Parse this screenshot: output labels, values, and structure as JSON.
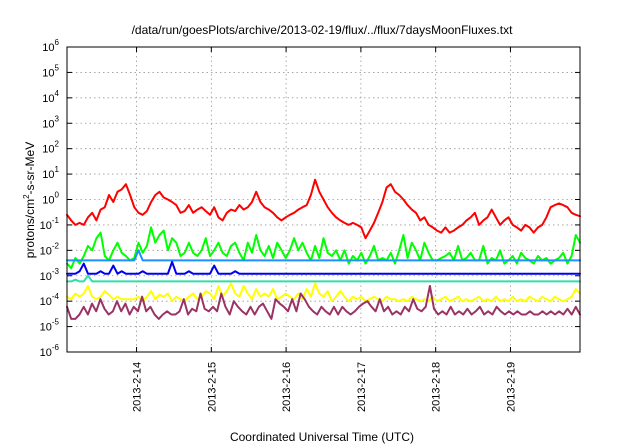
{
  "chart_data": {
    "type": "line",
    "title": "/data/run/goesPlots/archive/2013-02-19/flux/../flux/7daysMoonFluxes.txt",
    "xlabel": "Coordinated Universal Time (UTC)",
    "ylabel": "protons/cm2-s-sr-MeV",
    "ylabel_parts": {
      "pre": "protons/cm",
      "sup": "2",
      "post": "-s-sr-MeV"
    },
    "yscale": "log",
    "ylim": [
      1e-06,
      1000000.0
    ],
    "xlim": [
      -0.93,
      5.93
    ],
    "grid": true,
    "y_ticks": [
      {
        "value": -6,
        "base": "10",
        "exp": "-6"
      },
      {
        "value": -5,
        "base": "10",
        "exp": "-5"
      },
      {
        "value": -4,
        "base": "10",
        "exp": "-4"
      },
      {
        "value": -3,
        "base": "10",
        "exp": "-3"
      },
      {
        "value": -2,
        "base": "10",
        "exp": "-2"
      },
      {
        "value": -1,
        "base": "10",
        "exp": "-1"
      },
      {
        "value": 0,
        "base": "10",
        "exp": "0"
      },
      {
        "value": 1,
        "base": "10",
        "exp": "1"
      },
      {
        "value": 2,
        "base": "10",
        "exp": "2"
      },
      {
        "value": 3,
        "base": "10",
        "exp": "3"
      },
      {
        "value": 4,
        "base": "10",
        "exp": "4"
      },
      {
        "value": 5,
        "base": "10",
        "exp": "5"
      },
      {
        "value": 6,
        "base": "10",
        "exp": "6"
      }
    ],
    "x_ticks": [
      {
        "value": 0,
        "label": "2013-2-14"
      },
      {
        "value": 1,
        "label": "2013-2-15"
      },
      {
        "value": 2,
        "label": "2013-2-16"
      },
      {
        "value": 3,
        "label": "2013-2-17"
      },
      {
        "value": 4,
        "label": "2013-2-18"
      },
      {
        "value": 5,
        "label": "2013-2-19"
      }
    ],
    "series": [
      {
        "color": "#ff0000",
        "values": [
          0.25,
          0.15,
          0.1,
          0.12,
          0.1,
          0.2,
          0.3,
          0.15,
          0.4,
          0.5,
          1.5,
          0.8,
          2.0,
          2.5,
          4.0,
          1.5,
          0.5,
          0.3,
          0.25,
          0.35,
          0.8,
          1.5,
          2.0,
          1.2,
          1.0,
          0.8,
          0.6,
          0.3,
          0.35,
          0.6,
          0.3,
          0.4,
          0.5,
          0.35,
          0.25,
          0.5,
          0.2,
          0.15,
          0.3,
          0.4,
          0.35,
          0.6,
          0.4,
          0.5,
          0.8,
          2.0,
          0.8,
          0.5,
          0.4,
          0.3,
          0.2,
          0.15,
          0.2,
          0.25,
          0.3,
          0.4,
          0.5,
          0.6,
          1.5,
          6.0,
          2.0,
          1.0,
          0.5,
          0.3,
          0.2,
          0.15,
          0.12,
          0.1,
          0.12,
          0.1,
          0.08,
          0.03,
          0.06,
          0.12,
          0.3,
          0.8,
          3.0,
          4.0,
          2.0,
          1.5,
          1.0,
          0.6,
          0.4,
          0.3,
          0.15,
          0.2,
          0.1,
          0.08,
          0.06,
          0.05,
          0.08,
          0.05,
          0.06,
          0.08,
          0.1,
          0.15,
          0.2,
          0.3,
          0.1,
          0.15,
          0.2,
          0.4,
          0.2,
          0.1,
          0.15,
          0.2,
          0.1,
          0.08,
          0.06,
          0.1,
          0.08,
          0.05,
          0.08,
          0.1,
          0.2,
          0.5,
          0.6,
          0.7,
          0.6,
          0.5,
          0.3,
          0.25,
          0.22
        ]
      },
      {
        "color": "#00ff00",
        "values": [
          0.003,
          0.002,
          0.005,
          0.003,
          0.006,
          0.015,
          0.01,
          0.03,
          0.05,
          0.006,
          0.004,
          0.01,
          0.02,
          0.008,
          0.006,
          0.004,
          0.005,
          0.02,
          0.008,
          0.015,
          0.08,
          0.02,
          0.04,
          0.06,
          0.01,
          0.03,
          0.02,
          0.006,
          0.008,
          0.02,
          0.008,
          0.006,
          0.01,
          0.03,
          0.006,
          0.01,
          0.02,
          0.008,
          0.006,
          0.015,
          0.02,
          0.008,
          0.004,
          0.02,
          0.008,
          0.04,
          0.01,
          0.006,
          0.015,
          0.005,
          0.02,
          0.01,
          0.005,
          0.01,
          0.03,
          0.01,
          0.02,
          0.008,
          0.004,
          0.015,
          0.005,
          0.03,
          0.008,
          0.006,
          0.01,
          0.004,
          0.01,
          0.003,
          0.006,
          0.004,
          0.008,
          0.003,
          0.006,
          0.015,
          0.004,
          0.005,
          0.004,
          0.008,
          0.003,
          0.01,
          0.04,
          0.005,
          0.02,
          0.01,
          0.004,
          0.02,
          0.008,
          0.004,
          0.004,
          0.005,
          0.006,
          0.008,
          0.004,
          0.015,
          0.004,
          0.005,
          0.008,
          0.004,
          0.004,
          0.015,
          0.003,
          0.005,
          0.004,
          0.01,
          0.003,
          0.004,
          0.006,
          0.003,
          0.008,
          0.005,
          0.004,
          0.003,
          0.006,
          0.004,
          0.005,
          0.003,
          0.004,
          0.005,
          0.008,
          0.003,
          0.006,
          0.04,
          0.02
        ]
      },
      {
        "color": "#1e90ff",
        "values": [
          0.004,
          0.004,
          0.004,
          0.004,
          0.004,
          0.004,
          0.004,
          0.004,
          0.004,
          0.004,
          0.004,
          0.004,
          0.004,
          0.004,
          0.004,
          0.004,
          0.004,
          0.01,
          0.004,
          0.004,
          0.004,
          0.004,
          0.004,
          0.004,
          0.004,
          0.004,
          0.004,
          0.004,
          0.004,
          0.004,
          0.004,
          0.004,
          0.004,
          0.004,
          0.004,
          0.004,
          0.004,
          0.004,
          0.004,
          0.004,
          0.004,
          0.004,
          0.004,
          0.004,
          0.004,
          0.004,
          0.004,
          0.004,
          0.004,
          0.004,
          0.004,
          0.004,
          0.004,
          0.004,
          0.004,
          0.004,
          0.004,
          0.004,
          0.004,
          0.004,
          0.004,
          0.004,
          0.004,
          0.004,
          0.004,
          0.004,
          0.004,
          0.004,
          0.004,
          0.004,
          0.004,
          0.004,
          0.004,
          0.004,
          0.004,
          0.004,
          0.004,
          0.004,
          0.004,
          0.004,
          0.004,
          0.004,
          0.004,
          0.004,
          0.004,
          0.004,
          0.004,
          0.004,
          0.004,
          0.004,
          0.004,
          0.004,
          0.004,
          0.004,
          0.004,
          0.004,
          0.004,
          0.004,
          0.004,
          0.004,
          0.004,
          0.004,
          0.004,
          0.004,
          0.004,
          0.004,
          0.004,
          0.004,
          0.004,
          0.004,
          0.004,
          0.004,
          0.004,
          0.004,
          0.004,
          0.004,
          0.004,
          0.004,
          0.004,
          0.004,
          0.004,
          0.004,
          0.004
        ]
      },
      {
        "color": "#0000ee",
        "values": [
          0.0012,
          0.0012,
          0.0012,
          0.0015,
          0.003,
          0.0012,
          0.0012,
          0.0012,
          0.0015,
          0.0012,
          0.0012,
          0.0025,
          0.0012,
          0.0015,
          0.0012,
          0.0012,
          0.0012,
          0.0012,
          0.0015,
          0.0012,
          0.0012,
          0.0012,
          0.0012,
          0.0012,
          0.0012,
          0.0035,
          0.0012,
          0.0012,
          0.0012,
          0.0015,
          0.0012,
          0.0012,
          0.0012,
          0.0012,
          0.0012,
          0.0025,
          0.0012,
          0.0012,
          0.0012,
          0.0012,
          0.0015,
          0.0012,
          0.0012,
          0.0012,
          0.0012,
          0.0012,
          0.0012,
          0.0012,
          0.0012,
          0.0012,
          0.0012,
          0.0012,
          0.0012,
          0.0012,
          0.0012,
          0.0012,
          0.0012,
          0.0012,
          0.0012,
          0.0012,
          0.0012,
          0.0012,
          0.0012,
          0.0012,
          0.0012,
          0.0012,
          0.0012,
          0.0012,
          0.0012,
          0.0012,
          0.0012,
          0.0012,
          0.0012,
          0.0012,
          0.0012,
          0.0012,
          0.0012,
          0.0012,
          0.0012,
          0.0012,
          0.0012,
          0.0012,
          0.0012,
          0.0012,
          0.0012,
          0.0012,
          0.0012,
          0.0012,
          0.0012,
          0.0012,
          0.0012,
          0.0012,
          0.0012,
          0.0012,
          0.0012,
          0.0012,
          0.0012,
          0.0012,
          0.0012,
          0.0012,
          0.0012,
          0.0012,
          0.0012,
          0.0012,
          0.0012,
          0.0012,
          0.0012,
          0.0012,
          0.0012,
          0.0012,
          0.0012,
          0.0012,
          0.0012,
          0.0012,
          0.0012,
          0.0012,
          0.0012,
          0.0012,
          0.0012,
          0.0012,
          0.0012,
          0.0012,
          0.0012
        ]
      },
      {
        "color": "#33ddaa",
        "values": [
          0.0006,
          0.0006,
          0.0007,
          0.0006,
          0.0006,
          0.001,
          0.0006,
          0.0006,
          0.0006,
          0.0006,
          0.0006,
          0.0006,
          0.0006,
          0.0006,
          0.0006,
          0.0006,
          0.0006,
          0.0006,
          0.0006,
          0.0006,
          0.0006,
          0.0006,
          0.0006,
          0.0006,
          0.0006,
          0.0006,
          0.0006,
          0.0006,
          0.0006,
          0.0006,
          0.0006,
          0.0006,
          0.0006,
          0.0006,
          0.0006,
          0.0006,
          0.0006,
          0.0006,
          0.0006,
          0.0006,
          0.0006,
          0.0006,
          0.0006,
          0.0006,
          0.0006,
          0.0006,
          0.0006,
          0.0006,
          0.0006,
          0.0006,
          0.0006,
          0.0006,
          0.0006,
          0.0006,
          0.0006,
          0.0006,
          0.0006,
          0.0006,
          0.0006,
          0.0006,
          0.0006,
          0.0006,
          0.0006,
          0.0006,
          0.0006,
          0.0006,
          0.0006,
          0.0006,
          0.0006,
          0.0006,
          0.0006,
          0.0006,
          0.0006,
          0.0006,
          0.0006,
          0.0006,
          0.0006,
          0.0006,
          0.0006,
          0.0006,
          0.0006,
          0.0006,
          0.0006,
          0.0006,
          0.0006,
          0.0006,
          0.0006,
          0.0006,
          0.0006,
          0.0006,
          0.0006,
          0.0006,
          0.0006,
          0.0006,
          0.0006,
          0.0006,
          0.0006,
          0.0006,
          0.0006,
          0.0006,
          0.0006,
          0.0006,
          0.0006,
          0.0006,
          0.0006,
          0.0006,
          0.0006,
          0.0006,
          0.0006,
          0.0006,
          0.0006,
          0.0006,
          0.0006,
          0.0006,
          0.0006,
          0.0006,
          0.0006,
          0.0006,
          0.0006,
          0.0006,
          0.0006,
          0.0006,
          0.0006
        ]
      },
      {
        "color": "#ffff00",
        "values": [
          0.00015,
          0.00012,
          0.0002,
          0.00015,
          0.0002,
          0.0004,
          0.00015,
          0.00012,
          0.00015,
          0.00025,
          0.00018,
          0.00012,
          0.00015,
          0.00012,
          0.00012,
          0.00012,
          0.00012,
          0.00015,
          0.0001,
          0.00015,
          0.00025,
          0.00012,
          0.00018,
          0.00015,
          0.0002,
          0.0001,
          0.00015,
          0.00012,
          0.0001,
          0.00015,
          0.0002,
          0.00012,
          0.00015,
          0.00025,
          0.0002,
          0.00012,
          0.0004,
          0.00015,
          0.00025,
          0.0005,
          0.0002,
          0.00015,
          0.0004,
          0.0002,
          0.00012,
          0.0003,
          0.00015,
          0.0002,
          0.00015,
          0.0003,
          0.00012,
          0.00015,
          0.0002,
          0.00015,
          0.00012,
          0.0002,
          0.00012,
          0.0003,
          0.00015,
          0.0005,
          0.0002,
          0.00015,
          0.00025,
          0.0001,
          0.00015,
          0.00025,
          0.00015,
          0.0001,
          0.00015,
          0.00012,
          0.00015,
          0.0001,
          0.00012,
          0.00015,
          0.00012,
          0.0001,
          0.00015,
          0.00012,
          0.00012,
          0.0001,
          0.00012,
          0.0001,
          0.00015,
          0.00012,
          0.0001,
          0.00012,
          0.0001,
          0.00015,
          0.0001,
          0.00012,
          0.00015,
          0.0001,
          0.00012,
          0.00015,
          0.0001,
          0.00012,
          0.0001,
          0.00012,
          0.00015,
          0.0001,
          0.00012,
          0.0001,
          0.00015,
          0.0001,
          0.00012,
          0.0001,
          0.00015,
          0.0001,
          0.00012,
          0.0001,
          0.00015,
          0.00012,
          0.0001,
          0.00015,
          0.00012,
          0.0001,
          0.00015,
          0.00012,
          0.0001,
          0.00012,
          0.00015,
          0.0003,
          0.0002
        ]
      },
      {
        "color": "#993366",
        "values": [
          6e-05,
          2e-05,
          2e-05,
          3e-05,
          6e-05,
          3e-05,
          8e-05,
          4e-05,
          0.00012,
          5e-05,
          3e-05,
          4e-05,
          0.0001,
          4e-05,
          8e-05,
          3e-05,
          6e-05,
          4e-05,
          0.00015,
          4e-05,
          6e-05,
          3e-05,
          2e-05,
          3e-05,
          4e-05,
          3e-05,
          3e-05,
          4e-05,
          0.00012,
          3e-05,
          5e-05,
          4e-05,
          0.0002,
          5e-05,
          4e-05,
          6e-05,
          4e-05,
          0.0002,
          6e-05,
          3e-05,
          0.0001,
          6e-05,
          4e-05,
          3e-05,
          6e-05,
          3e-05,
          6e-05,
          8e-05,
          4e-05,
          2e-05,
          0.00012,
          8e-05,
          6e-05,
          4e-05,
          0.00012,
          4e-05,
          0.0002,
          0.00012,
          6e-05,
          4e-05,
          3e-05,
          6e-05,
          4e-05,
          3e-05,
          6e-05,
          3e-05,
          6e-05,
          4e-05,
          3e-05,
          4e-05,
          6e-05,
          8e-05,
          0.0001,
          6e-05,
          4e-05,
          0.00012,
          4e-05,
          6e-05,
          3e-05,
          4e-05,
          3e-05,
          6e-05,
          4e-05,
          0.00012,
          5e-05,
          4e-05,
          6e-05,
          0.0004,
          5e-05,
          3e-05,
          4e-05,
          3e-05,
          6e-05,
          3e-05,
          4e-05,
          3e-05,
          5e-05,
          3e-05,
          4e-05,
          6e-05,
          3e-05,
          4e-05,
          3e-05,
          6e-05,
          4e-05,
          3e-05,
          4e-05,
          3e-05,
          4e-05,
          3e-05,
          3e-05,
          4e-05,
          3e-05,
          3e-05,
          4e-05,
          3e-05,
          4e-05,
          3e-05,
          4e-05,
          3e-05,
          5e-05,
          3e-05,
          6e-05,
          3e-05
        ]
      }
    ]
  }
}
